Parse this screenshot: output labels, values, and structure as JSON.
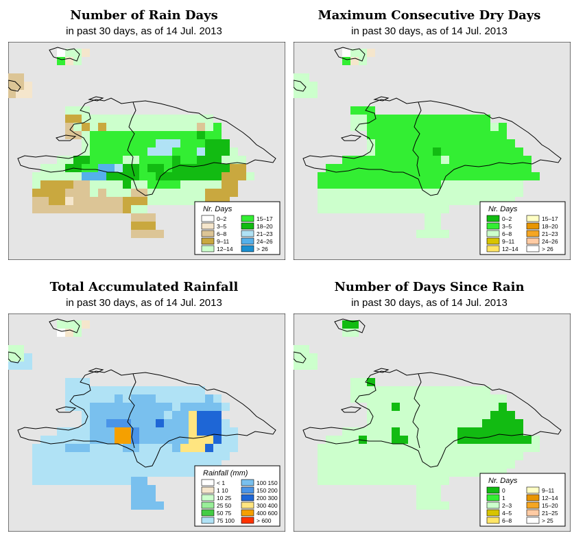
{
  "colors": {
    "map_background": "#e5e5e5",
    "outline": "#000000"
  },
  "panels": [
    {
      "id": "rain-days",
      "title": "Number of Rain Days",
      "subtitle": "in past 30 days, as of  14 Jul. 2013",
      "legend_title": "Nr. Days",
      "legend_items": [
        {
          "label": "0–2",
          "color": "#ffffff"
        },
        {
          "label": "3–5",
          "color": "#f5e6cc"
        },
        {
          "label": "6–8",
          "color": "#dcc596"
        },
        {
          "label": "9–11",
          "color": "#c9a83f"
        },
        {
          "label": "12–14",
          "color": "#ccffcc"
        },
        {
          "label": "15–17",
          "color": "#33ee33"
        },
        {
          "label": "18–20",
          "color": "#12bb12"
        },
        {
          "label": "21–23",
          "color": "#b0e2f5"
        },
        {
          "label": "24–26",
          "color": "#55b0ea"
        },
        {
          "label": "> 26",
          "color": "#1a8fd0"
        }
      ]
    },
    {
      "id": "max-dry-days",
      "title": "Maximum Consecutive Dry Days",
      "subtitle": "in past 30 days, as of  14 Jul. 2013",
      "legend_title": "Nr. Days",
      "legend_items": [
        {
          "label": "0–2",
          "color": "#12bb12"
        },
        {
          "label": "3–5",
          "color": "#33ee33"
        },
        {
          "label": "6–8",
          "color": "#ccffcc"
        },
        {
          "label": "9–11",
          "color": "#d8c400"
        },
        {
          "label": "12–14",
          "color": "#ffe566"
        },
        {
          "label": "15–17",
          "color": "#ffffc4"
        },
        {
          "label": "18–20",
          "color": "#e89500"
        },
        {
          "label": "21–23",
          "color": "#f5a623"
        },
        {
          "label": "24–26",
          "color": "#ffcba4"
        },
        {
          "label": "> 26",
          "color": "#ffffff"
        }
      ]
    },
    {
      "id": "total-rainfall",
      "title": "Total Accumulated Rainfall",
      "subtitle": "in past 30 days, as of  14 Jul. 2013",
      "legend_title": "Rainfall (mm)",
      "legend_items": [
        {
          "label": "< 1",
          "color": "#ffffff"
        },
        {
          "label": "1  10",
          "color": "#f5e6cc"
        },
        {
          "label": "10  25",
          "color": "#ccffcc"
        },
        {
          "label": "25  50",
          "color": "#99ee99"
        },
        {
          "label": "50  75",
          "color": "#44cc44"
        },
        {
          "label": "75  100",
          "color": "#b0e2f5"
        },
        {
          "label": "100  150",
          "color": "#79c0ee"
        },
        {
          "label": "150  200",
          "color": "#4a94e8"
        },
        {
          "label": "200  300",
          "color": "#1e66d6"
        },
        {
          "label": "300  400",
          "color": "#ffe580"
        },
        {
          "label": "400  600",
          "color": "#f5a000"
        },
        {
          "label": "> 600",
          "color": "#ff3300"
        }
      ]
    },
    {
      "id": "days-since-rain",
      "title": "Number of Days Since Rain",
      "subtitle": "in past 30 days, as of  14 Jul. 2013",
      "legend_title": "Nr. Days",
      "legend_items": [
        {
          "label": "0",
          "color": "#12bb12"
        },
        {
          "label": "1",
          "color": "#33ee33"
        },
        {
          "label": "2–3",
          "color": "#ccffcc"
        },
        {
          "label": "4–5",
          "color": "#d8c400"
        },
        {
          "label": "6–8",
          "color": "#ffe566"
        },
        {
          "label": "9–11",
          "color": "#ffffc4"
        },
        {
          "label": "12–14",
          "color": "#e89500"
        },
        {
          "label": "15–20",
          "color": "#f5a623"
        },
        {
          "label": "21–25",
          "color": "#ffcba4"
        },
        {
          "label": "> 25",
          "color": "#ffffff"
        }
      ]
    }
  ],
  "grids": {
    "palette": [
      "#e5e5e5",
      "#ffffff",
      "#f5e6cc",
      "#dcc596",
      "#c9a83f",
      "#ccffcc",
      "#33ee33",
      "#12bb12",
      "#b0e2f5",
      "#55b0ea",
      "#1a8fd0",
      "#79c0ee",
      "#4a94e8",
      "#1e66d6",
      "#ffe580",
      "#f5a000",
      "#99ee99",
      "#44cc44",
      "#d8c400",
      "#ffe566",
      "#ffffc4",
      "#e89500",
      "#f5a623"
    ],
    "rain-days": [
      "0000001552000000000000000000000000",
      "0000006250000000000000000000000000",
      "0000000000000000000000000000000000",
      "3300000000000000000000000000000000",
      "3320000000000000000000000000000000",
      "3220000000000000000000000000000000",
      "0000000000000000000000000000000000",
      "0000000555000000000000000000000000",
      "0000000445555555555555555000000000",
      "0000000354545555555555535600000000",
      "0000000335666666666666676600000000",
      "0000000005666666668886667770000000",
      "0000000005666666688866687775000000",
      "0000005577666655666676677755500000",
      "0000555776699877677677777774400000",
      "0005555559997777667777777744450000",
      "0005444433555575566665555544000000",
      "0004444333535553355555554444000000",
      "0003344233333344455555554440000000",
      "0003333333333345500000005000000000",
      "0000000000000003330000000000000000",
      "0000000000000004440000000000000000",
      "0000000000000003333000000000000000",
      "0000000000000000000000000000000000",
      "0000000000000000000000000000000000",
      "0000000000000000000000000000000000"
    ],
    "max-dry-days": [
      "0000001552000000000000000000000000",
      "0000006250000000000000000000000000",
      "0000000000000000000000000000000000",
      "5500000000000000000000000000000000",
      "5550000000000000000000000000000000",
      "5550000000000000000000000000000000",
      "0000000000000000000000000000000000",
      "0000000666000000000000000000000000",
      "0000000556666666666666660000000000",
      "0000000556666666666666665600000000",
      "0000000006666666666666666600000000",
      "0000000005666666666666666660000000",
      "0000000005666666676666666666000000",
      "0000006666666666665666666666600000",
      "0000666666666666666666666666600000",
      "0006666666666666666666666666660000",
      "0006666666666666665555555555000000",
      "0005555555555555555555555555000000",
      "0005555555555555555555555550000000",
      "0005555555555555555000000000000000",
      "0000000000000000550000000000000000",
      "0000000000000000550000000000000000",
      "0000000000000005555000000000000000",
      "0000000000000000000000000000000000",
      "0000000000000000000000000000000000",
      "0000000000000000000000000000000000"
    ],
    "total-rainfall": [
      "0000005552000000000000000000000000",
      "0000001250000000000000000000000000",
      "0000000000000000000000000000000000",
      "5500000000000000000000000000000000",
      "5580000000000000000000000000000000",
      "8880000000000000000000000000000000",
      "0000000000000000000000000000000000",
      "0000000888000000000000000000000000",
      "0000000888888888888888880000000000",
      "0000000888888b8bbb888888b800000000",
      "0000000888bbbbbbbbbb8bbbbb80000000",
      "0000000008bbbbbbbbb8bbeddd000000000",
      "0000000008bbcccbbbdbbbeddd800000000",
      "0000008888bbbffcbbbbbbeddd880000000",
      "0000888888bbbffcbbbbbbeeed880000000",
      "0008888bbb8888bb8888beeed8880000000",
      "0008888888888888888888888880000000",
      "0008888888888888888888888800000000",
      "0008888888888888888888888000000000",
      "000888888888888bb00000000000000000",
      "000000000000000bbb0000000000000000",
      "000000000000000bbb0000000000000000",
      "000000000000000bbbb000000000000000",
      "0000000000000000000000000000000000",
      "0000000000000000000000000000000000",
      "0000000000000000000000000000000000"
    ],
    "days-since-rain": [
      "0000007700000000000000000000000000",
      "0000005500000000000000000000000000",
      "0000000000000000000000000000000000",
      "5500000000000000000000000000000000",
      "5550000000000000000000000000000000",
      "5550000000000000000000000000000000",
      "0000000000000000000000000000000000",
      "0000000557000000000000000000000000",
      "0000000555555555555555550000000000",
      "0000000555555555555555555500000000",
      "0000000005557555555555555700000000",
      "0000000005555555555555557770000000",
      "0000000005555555555555577777000000",
      "0000005555557555555577777777000000",
      "0000555575557755555577777777750000",
      "0005555555555555555555555555550000",
      "0005555555555555555555555555000000",
      "0005555555555555555555555550000000",
      "0005555555555555555555555500000000",
      "0005555555555555555000000000000000",
      "0000000000000005550000000000000000",
      "0000000000000005550000000000000000",
      "0000000000000005555000000000000000",
      "0000000000000000000000000000000000",
      "0000000000000000000000000000000000",
      "0000000000000000000000000000000000"
    ]
  }
}
